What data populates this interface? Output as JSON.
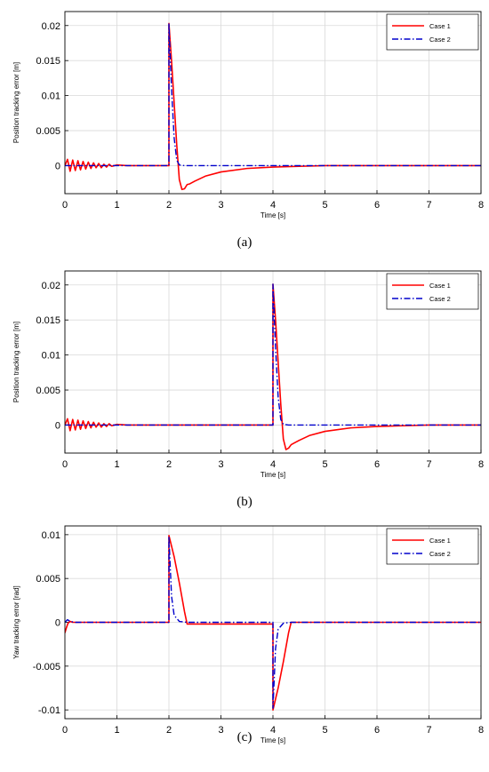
{
  "colors": {
    "case1": "#ff0000",
    "case2": "#0000cc",
    "grid": "#d9d9d9",
    "axis": "#000000"
  },
  "legend": {
    "placement": "top-right",
    "entries": [
      "Case 1",
      "Case 2"
    ]
  },
  "chart_data": [
    {
      "type": "line",
      "caption": "(a)",
      "xlabel": "Time [s]",
      "ylabel": "Position tracking error [m]",
      "xlim": [
        0,
        8
      ],
      "ylim": [
        -0.004,
        0.022
      ],
      "xticks": [
        0,
        1,
        2,
        3,
        4,
        5,
        6,
        7,
        8
      ],
      "yticks": [
        0,
        0.005,
        0.01,
        0.015,
        0.02
      ],
      "ytick_labels": [
        "0",
        "0.005",
        "0.01",
        "0.015",
        "0.02"
      ],
      "grid": true,
      "series": [
        {
          "name": "Case 1",
          "style": "solid",
          "x": [
            0,
            0.05,
            0.1,
            0.15,
            0.2,
            0.25,
            0.3,
            0.35,
            0.4,
            0.45,
            0.5,
            0.55,
            0.6,
            0.65,
            0.7,
            0.75,
            0.8,
            0.85,
            0.9,
            1.0,
            1.2,
            1.5,
            2.0,
            2.0,
            2.05,
            2.1,
            2.15,
            2.2,
            2.25,
            2.3,
            2.35,
            2.4,
            2.5,
            2.7,
            3.0,
            3.5,
            4.0,
            4.5,
            5.0,
            8.0
          ],
          "y": [
            0,
            0.0009,
            -0.0008,
            0.0008,
            -0.0007,
            0.0007,
            -0.0006,
            0.0006,
            -0.0005,
            0.0005,
            -0.0004,
            0.0004,
            -0.0003,
            0.0003,
            -0.0003,
            0.0002,
            -0.0002,
            0.0002,
            -0.0001,
            0.0001,
            0,
            0,
            0,
            0.0203,
            0.015,
            0.009,
            0.003,
            -0.002,
            -0.0034,
            -0.0033,
            -0.0027,
            -0.0026,
            -0.0022,
            -0.0015,
            -0.0009,
            -0.0004,
            -0.0002,
            -0.0001,
            0,
            0
          ]
        },
        {
          "name": "Case 2",
          "style": "dash-dot",
          "x": [
            0,
            2.0,
            2.0,
            2.05,
            2.1,
            2.15,
            2.2,
            2.3,
            8.0
          ],
          "y": [
            0,
            0,
            0.0203,
            0.011,
            0.004,
            0.0008,
            0.0001,
            0,
            0
          ]
        }
      ]
    },
    {
      "type": "line",
      "caption": "(b)",
      "xlabel": "Time [s]",
      "ylabel": "Position tracking error [m]",
      "xlim": [
        0,
        8
      ],
      "ylim": [
        -0.004,
        0.022
      ],
      "xticks": [
        0,
        1,
        2,
        3,
        4,
        5,
        6,
        7,
        8
      ],
      "yticks": [
        0,
        0.005,
        0.01,
        0.015,
        0.02
      ],
      "ytick_labels": [
        "0",
        "0.005",
        "0.01",
        "0.015",
        "0.02"
      ],
      "grid": true,
      "series": [
        {
          "name": "Case 1",
          "style": "solid",
          "x": [
            0,
            0.05,
            0.1,
            0.15,
            0.2,
            0.25,
            0.3,
            0.35,
            0.4,
            0.45,
            0.5,
            0.55,
            0.6,
            0.65,
            0.7,
            0.75,
            0.8,
            0.85,
            0.9,
            1.0,
            1.2,
            1.5,
            4.0,
            4.0,
            4.05,
            4.1,
            4.15,
            4.2,
            4.25,
            4.3,
            4.35,
            4.4,
            4.5,
            4.7,
            5.0,
            5.5,
            6.0,
            6.5,
            7.0,
            8.0
          ],
          "y": [
            0,
            0.0009,
            -0.0008,
            0.0008,
            -0.0007,
            0.0007,
            -0.0006,
            0.0006,
            -0.0005,
            0.0005,
            -0.0004,
            0.0004,
            -0.0003,
            0.0003,
            -0.0003,
            0.0002,
            -0.0002,
            0.0002,
            -0.0001,
            0.0001,
            0,
            0,
            0,
            0.0201,
            0.015,
            0.009,
            0.003,
            -0.002,
            -0.0035,
            -0.0033,
            -0.0028,
            -0.0026,
            -0.0022,
            -0.0015,
            -0.0009,
            -0.0004,
            -0.0002,
            -0.0001,
            0,
            0
          ]
        },
        {
          "name": "Case 2",
          "style": "dash-dot",
          "x": [
            0,
            4.0,
            4.0,
            4.05,
            4.1,
            4.15,
            4.2,
            4.3,
            8.0
          ],
          "y": [
            0,
            0,
            0.0201,
            0.011,
            0.004,
            0.0008,
            0.0001,
            0,
            0
          ]
        }
      ]
    },
    {
      "type": "line",
      "caption": "(c)",
      "xlabel": "Time [s]",
      "ylabel": "Yaw tracking error [rad]",
      "xlim": [
        0,
        8
      ],
      "ylim": [
        -0.011,
        0.011
      ],
      "xticks": [
        0,
        1,
        2,
        3,
        4,
        5,
        6,
        7,
        8
      ],
      "yticks": [
        -0.01,
        -0.005,
        0,
        0.005,
        0.01
      ],
      "ytick_labels": [
        "-0.01",
        "-0.005",
        "0",
        "0.005",
        "0.01"
      ],
      "grid": true,
      "series": [
        {
          "name": "Case 1",
          "style": "solid",
          "x": [
            0,
            0.03,
            0.06,
            0.1,
            0.15,
            0.2,
            2.0,
            2.0,
            2.1,
            2.2,
            2.3,
            2.35,
            3.5,
            4.0,
            4.0,
            4.1,
            4.2,
            4.3,
            4.35,
            8.0
          ],
          "y": [
            -0.0012,
            -0.0006,
            -0.0001,
            0.0001,
            0,
            0,
            0,
            0.0099,
            0.0075,
            0.0045,
            0.0012,
            -0.0002,
            -0.0002,
            -0.0002,
            -0.01,
            -0.0075,
            -0.0045,
            -0.0012,
            0,
            0
          ]
        },
        {
          "name": "Case 2",
          "style": "dash-dot",
          "x": [
            0,
            0.05,
            0.1,
            0.2,
            2.0,
            2.0,
            2.05,
            2.1,
            2.2,
            2.35,
            3.95,
            4.0,
            4.0,
            4.05,
            4.1,
            4.2,
            4.35,
            8.0
          ],
          "y": [
            0,
            0.0003,
            0.0001,
            0,
            0,
            0.0098,
            0.003,
            0.0008,
            0.0001,
            0,
            0,
            0,
            -0.0098,
            -0.003,
            -0.0008,
            -0.0001,
            0,
            0
          ]
        }
      ]
    }
  ]
}
